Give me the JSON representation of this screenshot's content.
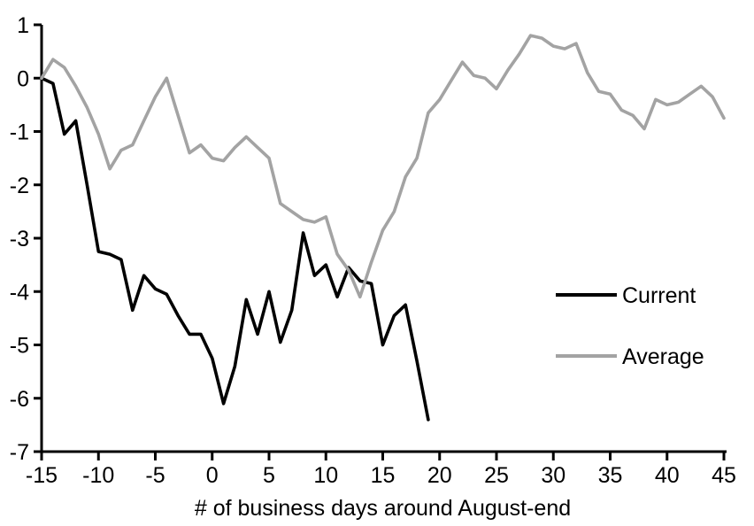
{
  "figure": {
    "background": "#ffffff",
    "axis_color": "#000000",
    "text_color": "#000000"
  },
  "chart_data": {
    "type": "line",
    "title": "",
    "xlabel": "# of business days around August-end",
    "ylabel": "",
    "xlim": [
      -15,
      45
    ],
    "ylim": [
      -7,
      1
    ],
    "x_ticks": [
      -15,
      -10,
      -5,
      0,
      5,
      10,
      15,
      20,
      25,
      30,
      35,
      40,
      45
    ],
    "y_ticks": [
      1,
      0,
      -1,
      -2,
      -3,
      -4,
      -5,
      -6,
      -7
    ],
    "grid": false,
    "legend_position": "middle-right",
    "series": [
      {
        "name": "Current",
        "color": "#000000",
        "x": [
          -15,
          -14,
          -13,
          -12,
          -11,
          -10,
          -9,
          -8,
          -7,
          -6,
          -5,
          -4,
          -3,
          -2,
          -1,
          0,
          1,
          2,
          3,
          4,
          5,
          6,
          7,
          8,
          9,
          10,
          11,
          12,
          13,
          14,
          15,
          16,
          17,
          18,
          19
        ],
        "values": [
          0,
          -0.1,
          -1.05,
          -0.8,
          -2,
          -3.25,
          -3.3,
          -3.4,
          -4.35,
          -3.7,
          -3.95,
          -4.05,
          -4.45,
          -4.8,
          -4.8,
          -5.25,
          -6.1,
          -5.4,
          -4.15,
          -4.8,
          -4,
          -4.95,
          -4.35,
          -2.9,
          -3.7,
          -3.5,
          -4.1,
          -3.55,
          -3.8,
          -3.85,
          -5,
          -4.45,
          -4.25,
          -5.3,
          -6.4
        ]
      },
      {
        "name": "Average",
        "color": "#a3a3a3",
        "x": [
          -15,
          -14,
          -13,
          -12,
          -11,
          -10,
          -9,
          -8,
          -7,
          -6,
          -5,
          -4,
          -3,
          -2,
          -1,
          0,
          1,
          2,
          3,
          4,
          5,
          6,
          7,
          8,
          9,
          10,
          11,
          12,
          13,
          14,
          15,
          16,
          17,
          18,
          19,
          20,
          21,
          22,
          23,
          24,
          25,
          26,
          27,
          28,
          29,
          30,
          31,
          32,
          33,
          34,
          35,
          36,
          37,
          38,
          39,
          40,
          41,
          42,
          43,
          44,
          45
        ],
        "values": [
          0,
          0.35,
          0.2,
          -0.15,
          -0.55,
          -1.05,
          -1.7,
          -1.35,
          -1.25,
          -0.8,
          -0.35,
          0,
          -0.7,
          -1.4,
          -1.25,
          -1.5,
          -1.55,
          -1.3,
          -1.1,
          -1.3,
          -1.5,
          -2.35,
          -2.5,
          -2.65,
          -2.7,
          -2.6,
          -3.3,
          -3.6,
          -4.1,
          -3.45,
          -2.85,
          -2.5,
          -1.85,
          -1.5,
          -0.65,
          -0.4,
          -0.05,
          0.3,
          0.05,
          0,
          -0.2,
          0.15,
          0.45,
          0.8,
          0.75,
          0.6,
          0.55,
          0.65,
          0.1,
          -0.25,
          -0.3,
          -0.6,
          -0.7,
          -0.95,
          -0.4,
          -0.5,
          -0.45,
          -0.3,
          -0.15,
          -0.35,
          -0.75
        ]
      }
    ]
  }
}
